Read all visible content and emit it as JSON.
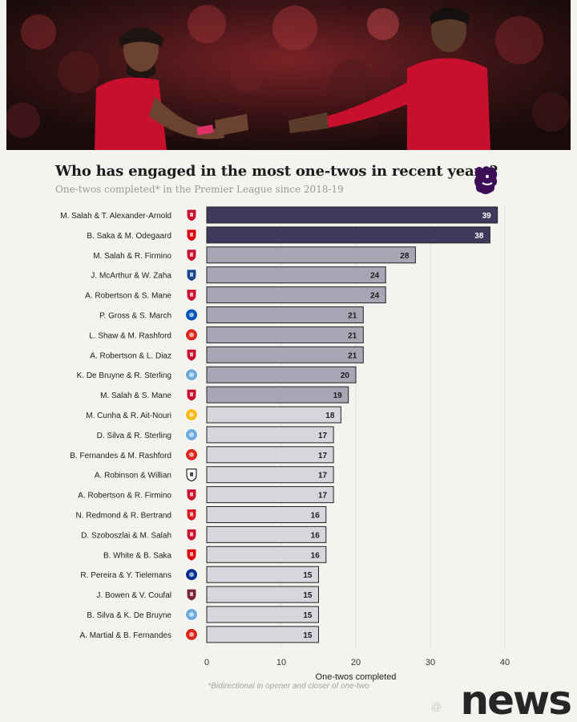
{
  "header": {
    "title": "Who has engaged in the most one-twos in recent years?",
    "subtitle": "One-twos completed* in the Premier League since 2018-19"
  },
  "colors": {
    "top_bar": "#3d3a5c",
    "mid_bar": "#a8a6b4",
    "low_bar": "#d6d6dc",
    "bar_stroke": "#222222",
    "liverpool": "#c8102e",
    "arsenal": "#db0007",
    "crystal_palace": "#1b458f",
    "brighton": "#0057b8",
    "man_united": "#da291c",
    "man_city": "#6cabdd",
    "wolves": "#fdb913",
    "fulham": "#000000",
    "southampton": "#d71920",
    "leicester": "#003090",
    "west_ham": "#7a263a"
  },
  "chart_data": {
    "type": "bar",
    "orientation": "horizontal",
    "title": "Who has engaged in the most one-twos in recent years?",
    "subtitle": "One-twos completed* in the Premier League since 2018-19",
    "xlabel": "One-twos completed",
    "xlim": [
      0,
      40
    ],
    "xticks": [
      0,
      10,
      20,
      30,
      40
    ],
    "grid": "vertical",
    "categories": [
      "M. Salah & T. Alexander-Arnold",
      "B. Saka & M. Odegaard",
      "M. Salah & R. Firmino",
      "J. McArthur & W. Zaha",
      "A. Robertson & S. Mane",
      "P. Gross & S. March",
      "L. Shaw & M. Rashford",
      "A. Robertson & L. Diaz",
      "K. De Bruyne & R. Sterling",
      "M. Salah & S. Mane",
      "M. Cunha & R. Ait-Nouri",
      "D. Silva & R. Sterling",
      "B. Fernandes & M. Rashford",
      "A. Robinson & Willian",
      "A. Robertson & R. Firmino",
      "N. Redmond & R. Bertrand",
      "D. Szoboszlai & M. Salah",
      "B. White & B. Saka",
      "R. Pereira & Y. Tielemans",
      "J. Bowen & V. Coufal",
      "B. Silva & K. De Bruyne",
      "A. Martial & B. Fernandes"
    ],
    "values": [
      39,
      38,
      28,
      24,
      24,
      21,
      21,
      21,
      20,
      19,
      18,
      17,
      17,
      17,
      17,
      16,
      16,
      16,
      15,
      15,
      15,
      15
    ],
    "clubs": [
      "liverpool",
      "arsenal",
      "liverpool",
      "crystal_palace",
      "liverpool",
      "brighton",
      "man_united",
      "liverpool",
      "man_city",
      "liverpool",
      "wolves",
      "man_city",
      "man_united",
      "fulham",
      "liverpool",
      "southampton",
      "liverpool",
      "arsenal",
      "leicester",
      "west_ham",
      "man_city",
      "man_united"
    ]
  },
  "footnote": "*Bidirectional in opener and closer of one-two",
  "watermark": "news",
  "weibo_mark": "@"
}
